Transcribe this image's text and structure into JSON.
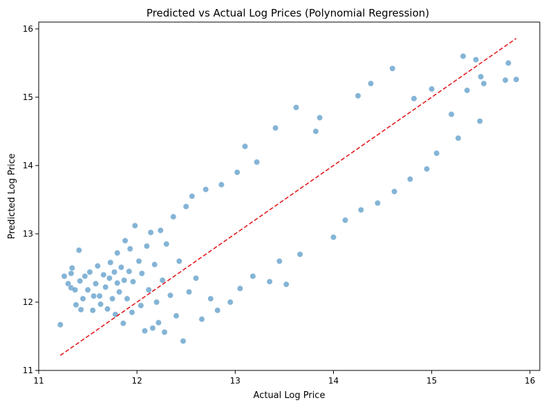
{
  "chart_data": {
    "type": "scatter",
    "title": "Predicted vs Actual Log Prices (Polynomial Regression)",
    "xlabel": "Actual Log Price",
    "ylabel": "Predicted Log Price",
    "xlim": [
      11.0,
      16.1
    ],
    "ylim": [
      11.0,
      16.1
    ],
    "x_ticks": [
      11,
      12,
      13,
      14,
      15,
      16
    ],
    "y_ticks": [
      11,
      12,
      13,
      14,
      15,
      16
    ],
    "x_tick_labels": [
      "11",
      "12",
      "13",
      "14",
      "15",
      "16"
    ],
    "y_tick_labels": [
      "11",
      "12",
      "13",
      "14",
      "15",
      "16"
    ],
    "grid": false,
    "point_color": "#1f77b4",
    "reference_line": {
      "x": [
        11.22,
        15.86
      ],
      "y": [
        11.22,
        15.86
      ],
      "color": "#e31a1c",
      "style": "dashed"
    },
    "series": [
      {
        "points": [
          [
            11.22,
            11.67
          ],
          [
            11.26,
            12.38
          ],
          [
            11.3,
            12.27
          ],
          [
            11.33,
            12.42
          ],
          [
            11.33,
            12.21
          ],
          [
            11.34,
            12.5
          ],
          [
            11.37,
            12.18
          ],
          [
            11.38,
            11.96
          ],
          [
            11.41,
            12.76
          ],
          [
            11.42,
            12.31
          ],
          [
            11.43,
            11.89
          ],
          [
            11.45,
            12.05
          ],
          [
            11.47,
            12.38
          ],
          [
            11.5,
            12.18
          ],
          [
            11.52,
            12.44
          ],
          [
            11.55,
            11.88
          ],
          [
            11.56,
            12.09
          ],
          [
            11.58,
            12.27
          ],
          [
            11.6,
            12.53
          ],
          [
            11.62,
            12.09
          ],
          [
            11.63,
            11.97
          ],
          [
            11.66,
            12.4
          ],
          [
            11.68,
            12.22
          ],
          [
            11.7,
            11.9
          ],
          [
            11.72,
            12.35
          ],
          [
            11.73,
            12.58
          ],
          [
            11.75,
            12.05
          ],
          [
            11.77,
            12.44
          ],
          [
            11.78,
            11.82
          ],
          [
            11.8,
            12.28
          ],
          [
            11.8,
            12.72
          ],
          [
            11.82,
            12.15
          ],
          [
            11.84,
            12.51
          ],
          [
            11.86,
            11.69
          ],
          [
            11.87,
            12.32
          ],
          [
            11.88,
            12.9
          ],
          [
            11.9,
            12.05
          ],
          [
            11.92,
            12.45
          ],
          [
            11.93,
            12.78
          ],
          [
            11.95,
            11.85
          ],
          [
            11.96,
            12.3
          ],
          [
            11.98,
            13.12
          ],
          [
            12.02,
            12.6
          ],
          [
            12.04,
            11.95
          ],
          [
            12.05,
            12.42
          ],
          [
            12.08,
            11.58
          ],
          [
            12.1,
            12.82
          ],
          [
            12.12,
            12.18
          ],
          [
            12.14,
            13.02
          ],
          [
            12.16,
            11.62
          ],
          [
            12.18,
            12.55
          ],
          [
            12.2,
            12.0
          ],
          [
            12.22,
            11.7
          ],
          [
            12.24,
            13.05
          ],
          [
            12.26,
            12.32
          ],
          [
            12.28,
            11.56
          ],
          [
            12.3,
            12.85
          ],
          [
            12.34,
            12.1
          ],
          [
            12.37,
            13.25
          ],
          [
            12.4,
            11.8
          ],
          [
            12.43,
            12.6
          ],
          [
            12.47,
            11.43
          ],
          [
            12.5,
            13.4
          ],
          [
            12.53,
            12.15
          ],
          [
            12.56,
            13.55
          ],
          [
            12.6,
            12.35
          ],
          [
            12.66,
            11.75
          ],
          [
            12.7,
            13.65
          ],
          [
            12.75,
            12.05
          ],
          [
            12.82,
            11.88
          ],
          [
            12.86,
            13.72
          ],
          [
            12.95,
            12.0
          ],
          [
            13.02,
            13.9
          ],
          [
            13.05,
            12.2
          ],
          [
            13.1,
            14.28
          ],
          [
            13.18,
            12.38
          ],
          [
            13.22,
            14.05
          ],
          [
            13.35,
            12.3
          ],
          [
            13.41,
            14.55
          ],
          [
            13.45,
            12.6
          ],
          [
            13.52,
            12.26
          ],
          [
            13.62,
            14.85
          ],
          [
            13.66,
            12.7
          ],
          [
            13.82,
            14.5
          ],
          [
            13.86,
            14.7
          ],
          [
            14.0,
            12.95
          ],
          [
            14.12,
            13.2
          ],
          [
            14.25,
            15.02
          ],
          [
            14.28,
            13.35
          ],
          [
            14.38,
            15.2
          ],
          [
            14.45,
            13.45
          ],
          [
            14.6,
            15.42
          ],
          [
            14.62,
            13.62
          ],
          [
            14.78,
            13.8
          ],
          [
            14.82,
            14.98
          ],
          [
            14.95,
            13.95
          ],
          [
            15.0,
            15.12
          ],
          [
            15.05,
            14.18
          ],
          [
            15.2,
            14.75
          ],
          [
            15.27,
            14.4
          ],
          [
            15.32,
            15.6
          ],
          [
            15.36,
            15.1
          ],
          [
            15.45,
            15.55
          ],
          [
            15.49,
            14.65
          ],
          [
            15.5,
            15.3
          ],
          [
            15.53,
            15.2
          ],
          [
            15.75,
            15.25
          ],
          [
            15.78,
            15.5
          ],
          [
            15.86,
            15.26
          ]
        ]
      }
    ]
  }
}
